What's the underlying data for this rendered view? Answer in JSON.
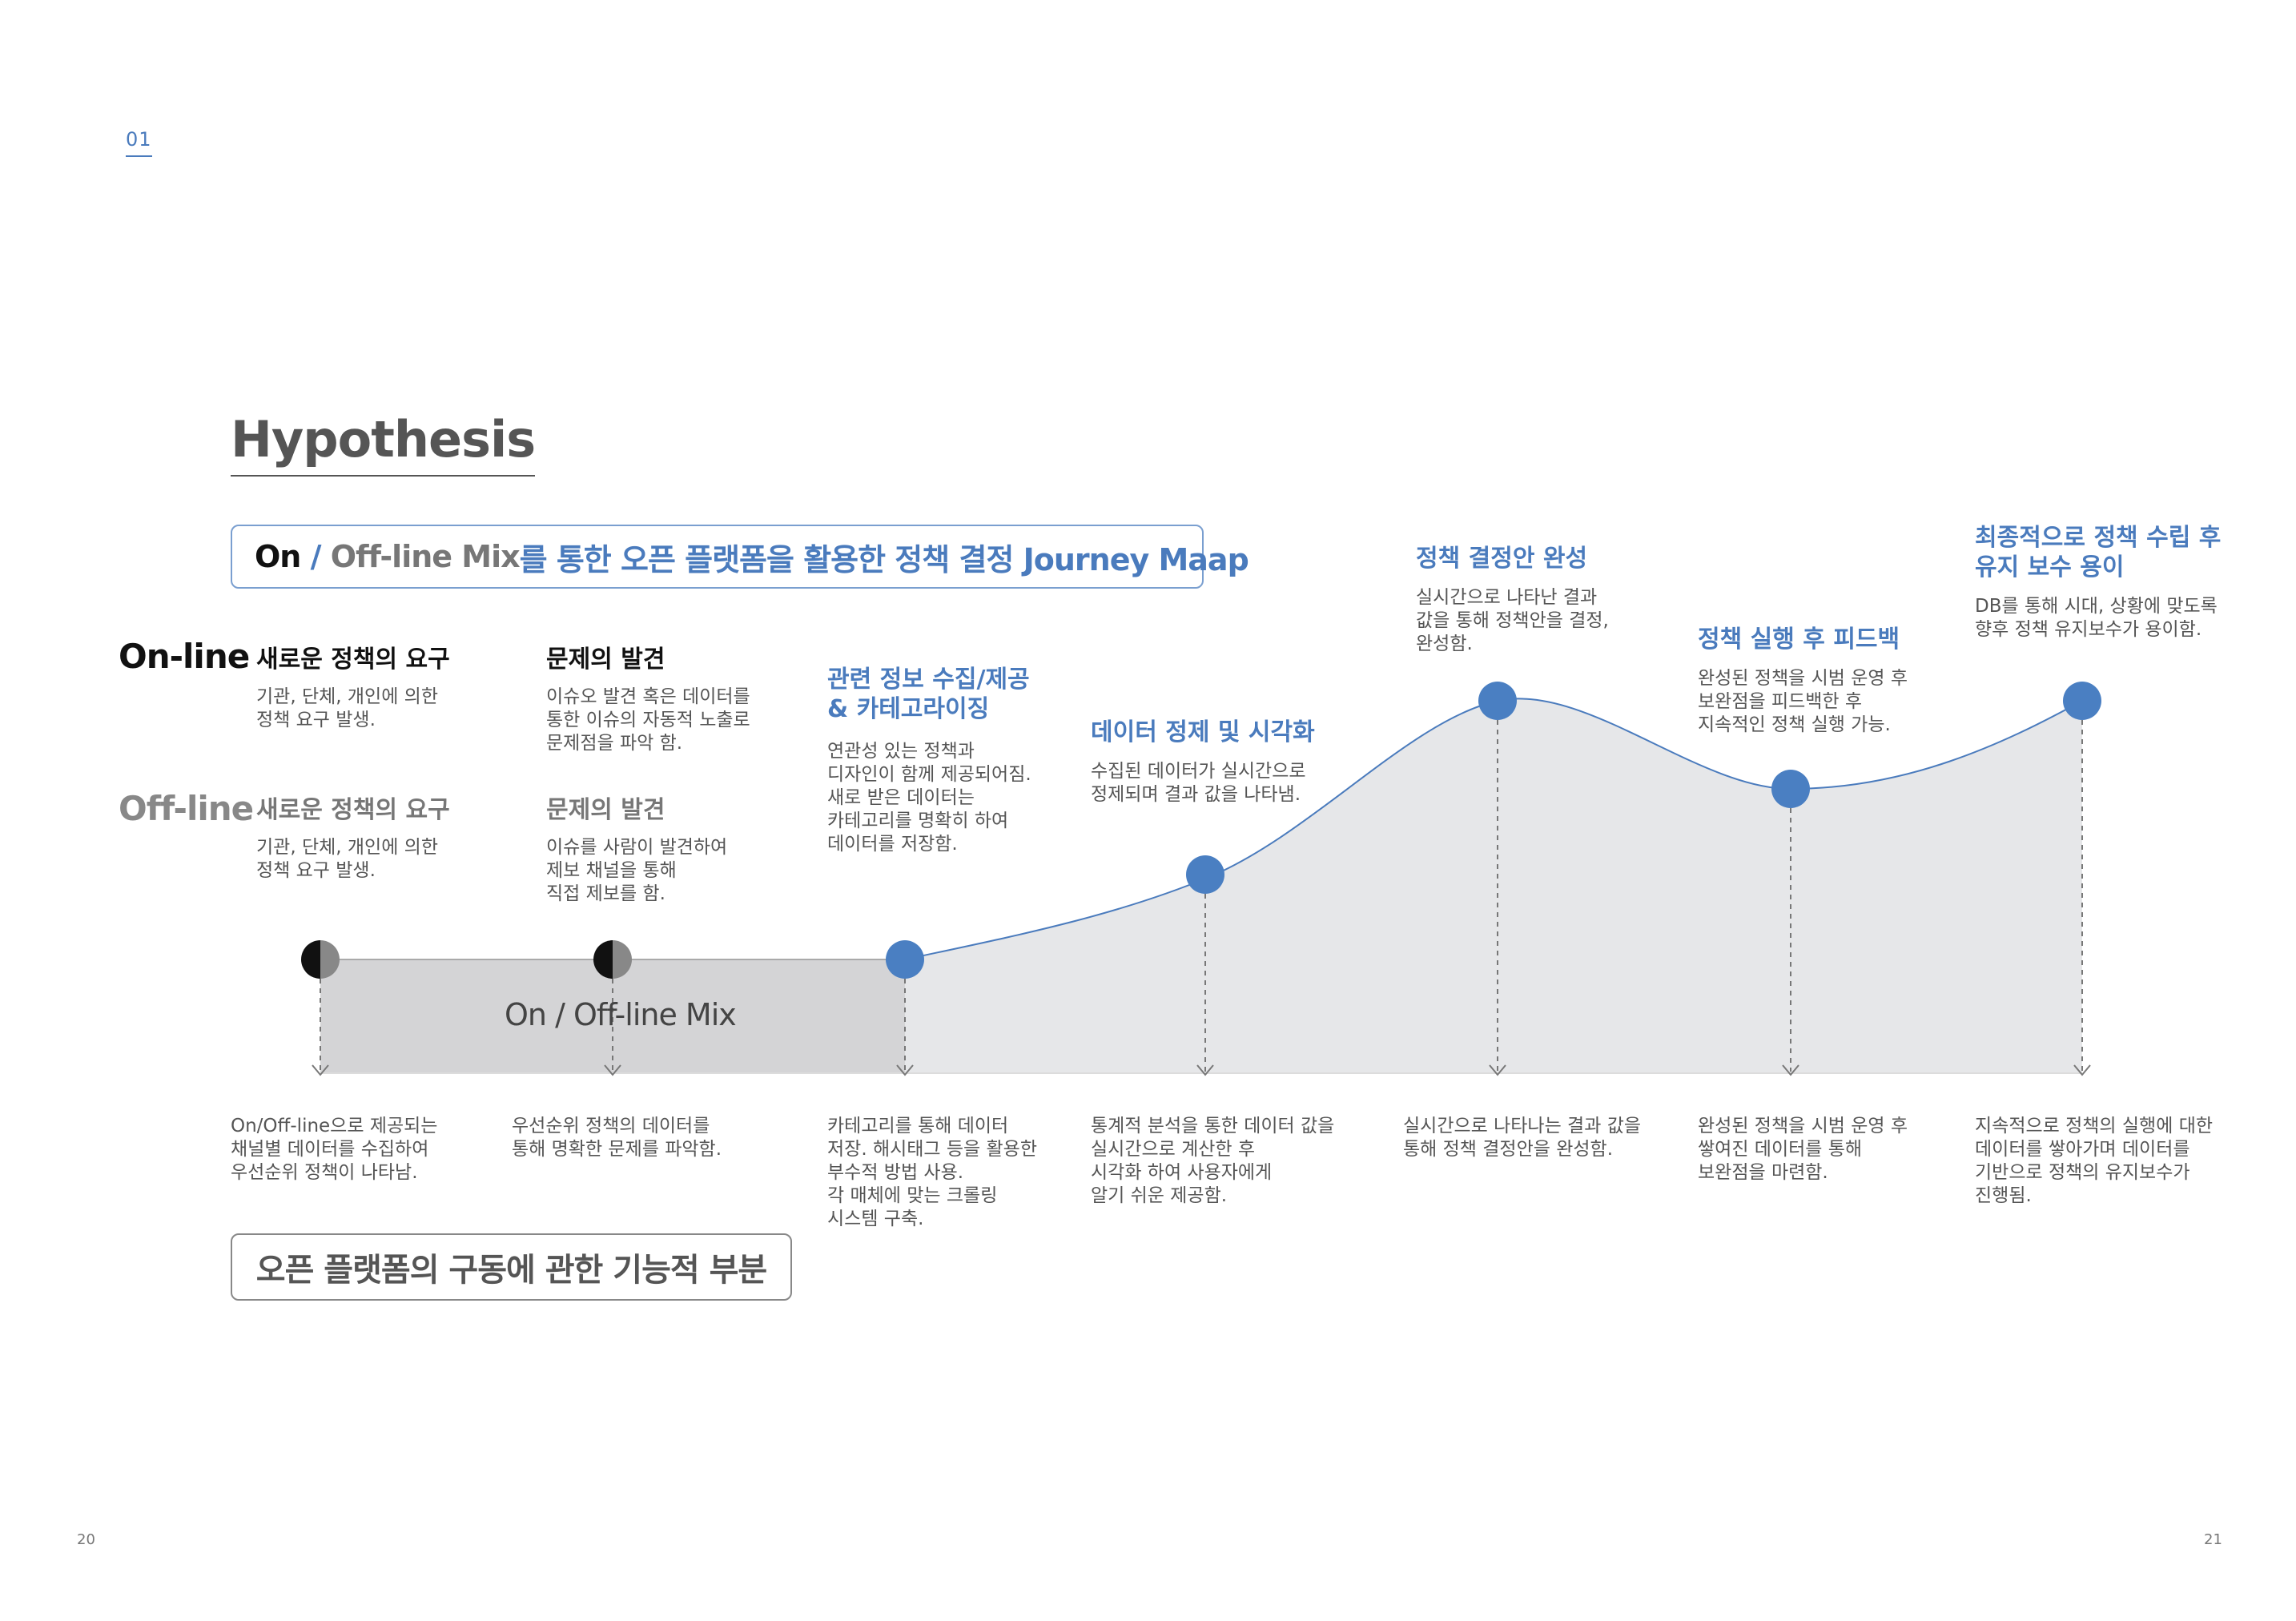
{
  "section_number": "01",
  "title": "Hypothesis",
  "journey_map": {
    "on": "On",
    "slash": " / ",
    "off": "Off-line Mix",
    "rest": "를 통한 오픈 플랫폼을 활용한 정책 결정 Journey Maap"
  },
  "rows": {
    "online": "On-line",
    "offline": "Off-line"
  },
  "online_stages": [
    {
      "title": "새로운 정책의 요구",
      "desc": "기관, 단체, 개인에 의한\n정책 요구 발생."
    },
    {
      "title": "문제의 발견",
      "desc": "이슈오 발견 혹은 데이터를\n통한 이슈의 자동적 노출로\n문제점을 파악 함."
    }
  ],
  "offline_stages": [
    {
      "title": "새로운 정책의 요구",
      "desc": "기관, 단체, 개인에 의한\n정책 요구 발생."
    },
    {
      "title": "문제의 발견",
      "desc": "이슈를 사람이 발견하여\n제보 채널을 통해\n직접 제보를 함."
    }
  ],
  "upper_stages": [
    {
      "title": "관련 정보 수집/제공\n& 카테고라이징",
      "desc": "연관성 있는 정책과\n디자인이 함께 제공되어짐.\n새로 받은 데이터는\n카테고리를 명확히 하여\n데이터를 저장함."
    },
    {
      "title": "데이터 정제 및 시각화",
      "desc": "수집된 데이터가 실시간으로\n정제되며 결과 값을 나타냄."
    },
    {
      "title": "정책 결정안 완성",
      "desc": "실시간으로 나타난 결과\n값을 통해 정책안을 결정,\n완성함."
    },
    {
      "title": "정책 실행 후 피드백",
      "desc": "완성된 정책을 시범 운영 후\n보완점을 피드백한 후\n지속적인 정책 실행 가능."
    },
    {
      "title": "최종적으로 정책 수립 후\n유지 보수 용이",
      "desc": "DB를 통해 시대, 상황에 맞도록\n향후 정책 유지보수가 용이함."
    }
  ],
  "mix_label": "On / Off-line Mix",
  "bottom_descriptions": [
    "On/Off-line으로 제공되는\n채널별 데이터를 수집하여\n우선순위 정책이 나타남.",
    "우선순위 정책의 데이터를\n통해 명확한 문제를 파악함.",
    "카테고리를 통해 데이터\n저장. 해시태그 등을 활용한\n부수적 방법 사용.\n각 매체에 맞는 크롤링\n시스템 구축.",
    "통계적 분석을 통한 데이터 값을\n실시간으로 계산한 후\n시각화 하여 사용자에게\n알기 쉬운 제공함.",
    "실시간으로 나타나는 결과 값을\n통해 정책 결정안을 완성함.",
    "완성된 정책을 시범 운영 후\n쌓여진 데이터를 통해\n보완점을 마련함.",
    "지속적으로 정책의 실행에 대한\n데이터를 쌓아가며 데이터를\n기반으로 정책의 유지보수가\n진행됨."
  ],
  "functional_box": "오픈 플랫폼의 구동에 관한 기능적 부분",
  "page_numbers": {
    "left": "20",
    "right": "21"
  },
  "colors": {
    "accent": "#4a7bbd",
    "area_fill": "#e6e7e9",
    "mix_fill": "#d4d4d6",
    "node": "#4a7fc2"
  }
}
